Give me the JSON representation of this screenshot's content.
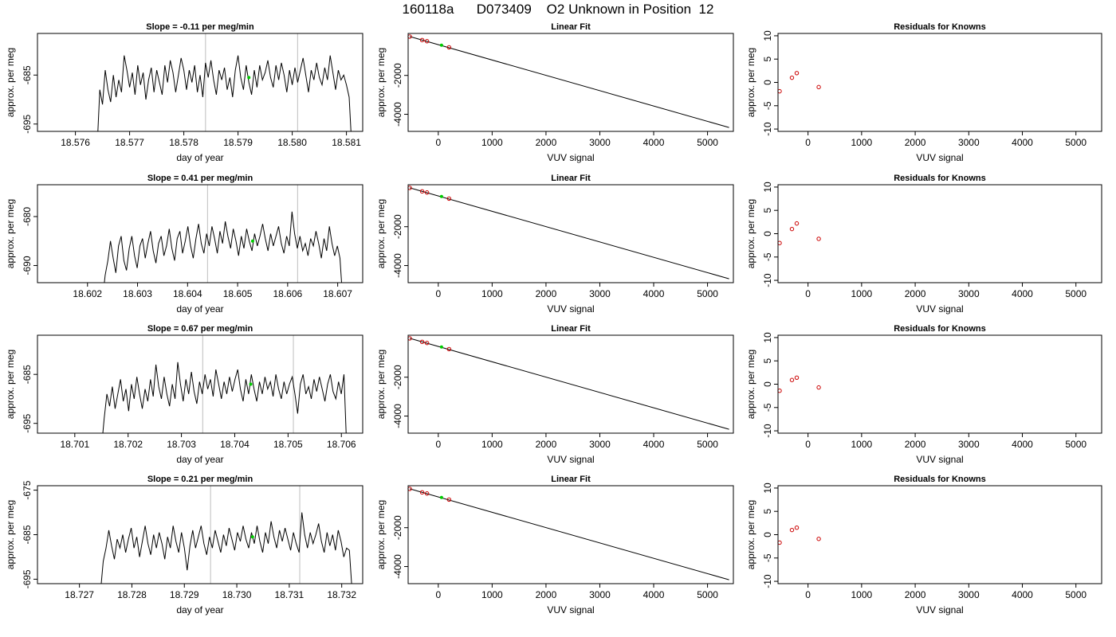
{
  "page": {
    "title": "160118a      D073409    O2 Unknown in Position  12"
  },
  "chart_data": [
    {
      "type": "line",
      "title": "Slope =  -0.11  per meg/min",
      "xlabel": "day of year",
      "ylabel": "approx. per meg",
      "xlim": [
        18.5753,
        18.5813
      ],
      "ylim": [
        -696.5,
        -676.5
      ],
      "xticks": [
        18.576,
        18.577,
        18.578,
        18.579,
        18.58,
        18.581
      ],
      "xtick_labels": [
        "18.576",
        "18.577",
        "18.578",
        "18.579",
        "18.580",
        "18.581"
      ],
      "yticks": [
        -695,
        -685
      ],
      "ytick_labels": [
        "-695",
        "-685"
      ],
      "vlines": [
        18.5784,
        18.5801
      ],
      "marker": {
        "x": 18.5792,
        "y": -685.5,
        "color": "#00cc00"
      },
      "series": [
        {
          "x_start": 18.5764,
          "x_end": 18.5811,
          "y": [
            -700.0,
            -688.0,
            -691.0,
            -684.0,
            -688.0,
            -690.5,
            -685.0,
            -689.5,
            -686.0,
            -688.5,
            -681.0,
            -684.0,
            -687.5,
            -684.5,
            -689.0,
            -683.0,
            -687.0,
            -684.5,
            -690.0,
            -686.0,
            -683.5,
            -688.5,
            -684.0,
            -686.5,
            -689.0,
            -683.0,
            -686.5,
            -682.0,
            -684.5,
            -688.5,
            -685.0,
            -681.5,
            -684.0,
            -688.0,
            -684.0,
            -686.5,
            -683.0,
            -688.5,
            -685.0,
            -689.5,
            -682.5,
            -685.5,
            -682.0,
            -686.0,
            -689.0,
            -684.0,
            -686.0,
            -683.5,
            -688.0,
            -685.5,
            -689.5,
            -684.0,
            -681.0,
            -685.5,
            -688.0,
            -683.0,
            -686.5,
            -689.0,
            -684.0,
            -687.5,
            -683.0,
            -686.0,
            -684.5,
            -682.0,
            -685.5,
            -687.5,
            -683.0,
            -686.0,
            -682.5,
            -685.0,
            -688.5,
            -684.0,
            -687.0,
            -683.5,
            -686.5,
            -684.0,
            -681.5,
            -685.0,
            -688.5,
            -684.0,
            -686.0,
            -682.5,
            -685.5,
            -687.0,
            -683.5,
            -686.0,
            -681.0,
            -684.5,
            -688.0,
            -684.0,
            -686.0,
            -685.0,
            -687.0,
            -689.5,
            -700.0
          ]
        }
      ]
    },
    {
      "type": "scatter",
      "title": "Linear Fit",
      "xlabel": "VUV signal",
      "ylabel": "approx. per meg",
      "xlim": [
        -560,
        5480
      ],
      "ylim": [
        -4880,
        160
      ],
      "xticks": [
        0,
        1000,
        2000,
        3000,
        4000,
        5000
      ],
      "xtick_labels": [
        "0",
        "1000",
        "2000",
        "3000",
        "4000",
        "5000"
      ],
      "yticks": [
        -4000,
        -2000
      ],
      "ytick_labels": [
        "-4000",
        "-2000"
      ],
      "fit_line": {
        "x": [
          -530,
          5400
        ],
        "y": [
          0,
          -4680
        ]
      },
      "points": {
        "x": [
          -530,
          -300,
          -210,
          200
        ],
        "y": [
          0,
          -182,
          -239,
          -554
        ],
        "color": "#cc0000"
      },
      "unknown": {
        "x": 60,
        "y": -442,
        "color": "#00cc00"
      }
    },
    {
      "type": "scatter",
      "title": "Residuals for Knowns",
      "xlabel": "VUV signal",
      "ylabel": "approx. per meg",
      "xlim": [
        -560,
        5480
      ],
      "ylim": [
        -10.5,
        10.5
      ],
      "xticks": [
        0,
        1000,
        2000,
        3000,
        4000,
        5000
      ],
      "xtick_labels": [
        "0",
        "1000",
        "2000",
        "3000",
        "4000",
        "5000"
      ],
      "yticks": [
        -10,
        -5,
        0,
        5,
        10
      ],
      "ytick_labels": [
        "-10",
        "-5",
        "0",
        "5",
        "10"
      ],
      "points": {
        "x": [
          -530,
          -300,
          -210,
          200
        ],
        "y": [
          -1.9,
          1.0,
          2.0,
          -1.0
        ],
        "color": "#cc0000"
      }
    },
    {
      "type": "line",
      "title": "Slope =  0.41  per meg/min",
      "xlabel": "day of year",
      "ylabel": "approx. per meg",
      "xlim": [
        18.601,
        18.6075
      ],
      "ylim": [
        -693.5,
        -673.5
      ],
      "xticks": [
        18.602,
        18.603,
        18.604,
        18.605,
        18.606,
        18.607
      ],
      "xtick_labels": [
        "18.602",
        "18.603",
        "18.604",
        "18.605",
        "18.606",
        "18.607"
      ],
      "yticks": [
        -690,
        -680
      ],
      "ytick_labels": [
        "-690",
        "-680"
      ],
      "vlines": [
        18.6044,
        18.6062
      ],
      "marker": {
        "x": 18.6053,
        "y": -685.0,
        "color": "#00cc00"
      },
      "series": [
        {
          "x_start": 18.6023,
          "x_end": 18.6071,
          "y": [
            -697.0,
            -692.0,
            -689.0,
            -685.0,
            -688.5,
            -691.5,
            -686.0,
            -684.0,
            -689.0,
            -691.0,
            -686.5,
            -684.0,
            -688.0,
            -690.5,
            -686.0,
            -684.5,
            -688.5,
            -685.5,
            -683.0,
            -687.0,
            -689.5,
            -685.5,
            -684.0,
            -688.0,
            -686.0,
            -682.5,
            -686.5,
            -689.0,
            -684.5,
            -683.0,
            -687.5,
            -685.0,
            -682.0,
            -686.0,
            -688.5,
            -684.5,
            -681.5,
            -685.5,
            -687.5,
            -683.5,
            -686.0,
            -682.0,
            -684.5,
            -687.5,
            -683.0,
            -685.5,
            -681.0,
            -684.0,
            -686.5,
            -682.5,
            -685.0,
            -688.0,
            -684.0,
            -686.5,
            -682.5,
            -685.0,
            -687.0,
            -683.5,
            -686.0,
            -684.0,
            -681.5,
            -684.5,
            -687.0,
            -683.5,
            -686.0,
            -684.0,
            -682.0,
            -685.5,
            -687.5,
            -684.0,
            -686.0,
            -679.0,
            -683.5,
            -686.5,
            -684.0,
            -687.0,
            -685.5,
            -688.0,
            -684.5,
            -686.0,
            -683.0,
            -685.5,
            -688.5,
            -684.5,
            -687.0,
            -682.0,
            -685.5,
            -688.0,
            -686.0,
            -688.5,
            -697.0
          ]
        }
      ]
    },
    {
      "type": "scatter",
      "title": "Linear Fit",
      "xlabel": "VUV signal",
      "ylabel": "approx. per meg",
      "xlim": [
        -560,
        5480
      ],
      "ylim": [
        -4880,
        160
      ],
      "xticks": [
        0,
        1000,
        2000,
        3000,
        4000,
        5000
      ],
      "xtick_labels": [
        "0",
        "1000",
        "2000",
        "3000",
        "4000",
        "5000"
      ],
      "yticks": [
        -4000,
        -2000
      ],
      "ytick_labels": [
        "-4000",
        "-2000"
      ],
      "fit_line": {
        "x": [
          -530,
          5400
        ],
        "y": [
          0,
          -4680
        ]
      },
      "points": {
        "x": [
          -530,
          -300,
          -210,
          200
        ],
        "y": [
          0,
          -182,
          -239,
          -554
        ],
        "color": "#cc0000"
      },
      "unknown": {
        "x": 60,
        "y": -442,
        "color": "#00cc00"
      }
    },
    {
      "type": "scatter",
      "title": "Residuals for Knowns",
      "xlabel": "VUV signal",
      "ylabel": "approx. per meg",
      "xlim": [
        -560,
        5480
      ],
      "ylim": [
        -10.5,
        10.5
      ],
      "xticks": [
        0,
        1000,
        2000,
        3000,
        4000,
        5000
      ],
      "xtick_labels": [
        "0",
        "1000",
        "2000",
        "3000",
        "4000",
        "5000"
      ],
      "yticks": [
        -10,
        -5,
        0,
        5,
        10
      ],
      "ytick_labels": [
        "-10",
        "-5",
        "0",
        "5",
        "10"
      ],
      "points": {
        "x": [
          -530,
          -300,
          -210,
          200
        ],
        "y": [
          -2.0,
          1.0,
          2.2,
          -1.1
        ],
        "color": "#cc0000"
      }
    },
    {
      "type": "line",
      "title": "Slope =  0.67  per meg/min",
      "xlabel": "day of year",
      "ylabel": "approx. per meg",
      "xlim": [
        18.7003,
        18.7064
      ],
      "ylim": [
        -697.0,
        -677.0
      ],
      "xticks": [
        18.701,
        18.702,
        18.703,
        18.704,
        18.705,
        18.706
      ],
      "xtick_labels": [
        "18.701",
        "18.702",
        "18.703",
        "18.704",
        "18.705",
        "18.706"
      ],
      "yticks": [
        -695,
        -685
      ],
      "ytick_labels": [
        "-695",
        "-685"
      ],
      "vlines": [
        18.7034,
        18.7051
      ],
      "marker": {
        "x": 18.7043,
        "y": -687.0,
        "color": "#00cc00"
      },
      "series": [
        {
          "x_start": 18.7015,
          "x_end": 18.7061,
          "y": [
            -700.0,
            -694.0,
            -689.0,
            -691.5,
            -687.5,
            -692.0,
            -689.0,
            -686.0,
            -690.5,
            -688.0,
            -692.5,
            -687.0,
            -690.0,
            -685.5,
            -689.0,
            -692.0,
            -688.0,
            -690.5,
            -686.0,
            -689.5,
            -683.0,
            -687.5,
            -690.0,
            -685.5,
            -689.0,
            -691.5,
            -687.0,
            -690.0,
            -682.5,
            -687.0,
            -690.5,
            -686.0,
            -689.0,
            -684.5,
            -688.5,
            -691.0,
            -686.5,
            -689.0,
            -685.0,
            -688.0,
            -686.0,
            -689.5,
            -684.0,
            -687.0,
            -690.0,
            -686.5,
            -689.0,
            -685.5,
            -688.5,
            -686.0,
            -684.0,
            -688.0,
            -690.5,
            -686.0,
            -689.0,
            -685.0,
            -688.0,
            -690.5,
            -686.5,
            -689.0,
            -685.5,
            -688.0,
            -686.5,
            -689.5,
            -685.0,
            -688.0,
            -690.0,
            -686.5,
            -689.0,
            -687.0,
            -685.5,
            -689.0,
            -693.0,
            -687.0,
            -685.0,
            -689.0,
            -687.5,
            -690.0,
            -686.0,
            -688.5,
            -685.5,
            -688.0,
            -690.5,
            -687.0,
            -685.0,
            -688.5,
            -690.0,
            -686.5,
            -689.0,
            -685.0,
            -700.0
          ]
        }
      ]
    },
    {
      "type": "scatter",
      "title": "Linear Fit",
      "xlabel": "VUV signal",
      "ylabel": "approx. per meg",
      "xlim": [
        -560,
        5480
      ],
      "ylim": [
        -4880,
        160
      ],
      "xticks": [
        0,
        1000,
        2000,
        3000,
        4000,
        5000
      ],
      "xtick_labels": [
        "0",
        "1000",
        "2000",
        "3000",
        "4000",
        "5000"
      ],
      "yticks": [
        -4000,
        -2000
      ],
      "ytick_labels": [
        "-4000",
        "-2000"
      ],
      "fit_line": {
        "x": [
          -530,
          5400
        ],
        "y": [
          0,
          -4680
        ]
      },
      "points": {
        "x": [
          -530,
          -300,
          -210,
          200
        ],
        "y": [
          0,
          -182,
          -239,
          -554
        ],
        "color": "#cc0000"
      },
      "unknown": {
        "x": 60,
        "y": -442,
        "color": "#00cc00"
      }
    },
    {
      "type": "scatter",
      "title": "Residuals for Knowns",
      "xlabel": "VUV signal",
      "ylabel": "approx. per meg",
      "xlim": [
        -560,
        5480
      ],
      "ylim": [
        -10.5,
        10.5
      ],
      "xticks": [
        0,
        1000,
        2000,
        3000,
        4000,
        5000
      ],
      "xtick_labels": [
        "0",
        "1000",
        "2000",
        "3000",
        "4000",
        "5000"
      ],
      "yticks": [
        -10,
        -5,
        0,
        5,
        10
      ],
      "ytick_labels": [
        "-10",
        "-5",
        "0",
        "5",
        "10"
      ],
      "points": {
        "x": [
          -530,
          -300,
          -210,
          200
        ],
        "y": [
          -1.4,
          0.9,
          1.4,
          -0.7
        ],
        "color": "#cc0000"
      }
    },
    {
      "type": "line",
      "title": "Slope =  0.21  per meg/min",
      "xlabel": "day of year",
      "ylabel": "approx. per meg",
      "xlim": [
        18.7262,
        18.7324
      ],
      "ylim": [
        -696.0,
        -674.0
      ],
      "xticks": [
        18.727,
        18.728,
        18.729,
        18.73,
        18.731,
        18.732
      ],
      "xtick_labels": [
        "18.727",
        "18.728",
        "18.729",
        "18.730",
        "18.731",
        "18.732"
      ],
      "yticks": [
        -695,
        -685,
        -675
      ],
      "ytick_labels": [
        "-695",
        "-685",
        "-675"
      ],
      "vlines": [
        18.7295,
        18.7312
      ],
      "marker": {
        "x": 18.7303,
        "y": -685.5,
        "color": "#00cc00"
      },
      "series": [
        {
          "x_start": 18.7274,
          "x_end": 18.7322,
          "y": [
            -698.0,
            -691.0,
            -688.0,
            -684.0,
            -687.5,
            -690.5,
            -686.0,
            -688.0,
            -685.0,
            -689.0,
            -686.0,
            -683.5,
            -688.0,
            -685.5,
            -690.0,
            -686.5,
            -683.0,
            -687.0,
            -689.5,
            -685.0,
            -688.0,
            -684.5,
            -687.0,
            -690.5,
            -685.5,
            -688.0,
            -683.0,
            -686.5,
            -689.0,
            -684.5,
            -688.0,
            -693.0,
            -687.5,
            -684.0,
            -688.0,
            -685.5,
            -683.0,
            -687.0,
            -689.5,
            -685.5,
            -688.0,
            -684.0,
            -686.5,
            -689.0,
            -685.0,
            -687.5,
            -683.5,
            -686.0,
            -688.5,
            -684.5,
            -686.5,
            -683.0,
            -686.0,
            -688.0,
            -684.5,
            -687.0,
            -683.0,
            -686.5,
            -689.0,
            -684.5,
            -687.0,
            -682.0,
            -685.5,
            -688.0,
            -684.0,
            -686.5,
            -683.5,
            -686.0,
            -688.5,
            -684.5,
            -687.0,
            -689.0,
            -680.0,
            -685.0,
            -688.0,
            -684.5,
            -687.0,
            -685.0,
            -682.5,
            -686.5,
            -689.0,
            -684.5,
            -687.5,
            -685.0,
            -688.5,
            -684.0,
            -686.5,
            -690.0,
            -688.0,
            -688.5,
            -698.0
          ]
        }
      ]
    },
    {
      "type": "scatter",
      "title": "Linear Fit",
      "xlabel": "VUV signal",
      "ylabel": "approx. per meg",
      "xlim": [
        -560,
        5480
      ],
      "ylim": [
        -4880,
        160
      ],
      "xticks": [
        0,
        1000,
        2000,
        3000,
        4000,
        5000
      ],
      "xtick_labels": [
        "0",
        "1000",
        "2000",
        "3000",
        "4000",
        "5000"
      ],
      "yticks": [
        -4000,
        -2000
      ],
      "ytick_labels": [
        "-4000",
        "-2000"
      ],
      "fit_line": {
        "x": [
          -530,
          5400
        ],
        "y": [
          0,
          -4680
        ]
      },
      "points": {
        "x": [
          -530,
          -300,
          -210,
          200
        ],
        "y": [
          0,
          -182,
          -239,
          -554
        ],
        "color": "#cc0000"
      },
      "unknown": {
        "x": 60,
        "y": -442,
        "color": "#00cc00"
      }
    },
    {
      "type": "scatter",
      "title": "Residuals for Knowns",
      "xlabel": "VUV signal",
      "ylabel": "approx. per meg",
      "xlim": [
        -560,
        5480
      ],
      "ylim": [
        -10.5,
        10.5
      ],
      "xticks": [
        0,
        1000,
        2000,
        3000,
        4000,
        5000
      ],
      "xtick_labels": [
        "0",
        "1000",
        "2000",
        "3000",
        "4000",
        "5000"
      ],
      "yticks": [
        -10,
        -5,
        0,
        5,
        10
      ],
      "ytick_labels": [
        "-10",
        "-5",
        "0",
        "5",
        "10"
      ],
      "points": {
        "x": [
          -530,
          -300,
          -210,
          200
        ],
        "y": [
          -1.7,
          1.0,
          1.5,
          -0.9
        ],
        "color": "#cc0000"
      }
    }
  ]
}
